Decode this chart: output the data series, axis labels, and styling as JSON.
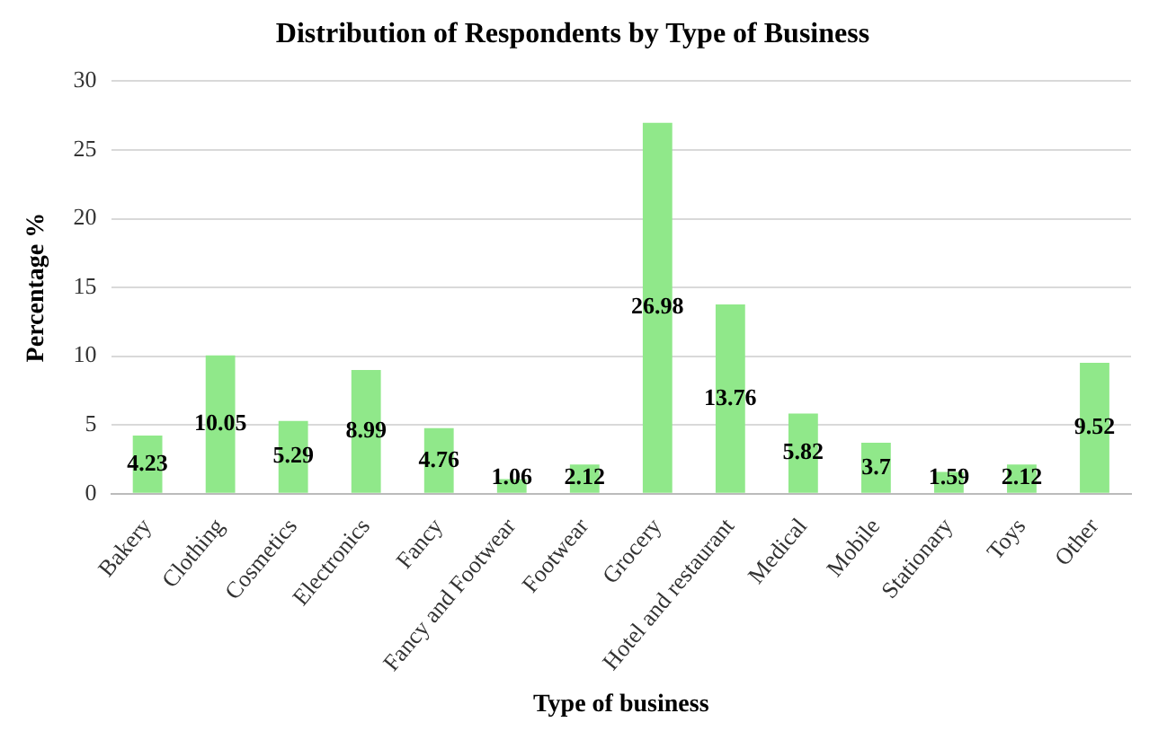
{
  "chart_data": {
    "type": "bar",
    "title": "Distribution of Respondents by Type of Business",
    "xlabel": "Type of business",
    "ylabel": "Percentage %",
    "categories": [
      "Bakery",
      "Clothing",
      "Cosmetics",
      "Electronics",
      "Fancy",
      "Fancy and Footwear",
      "Footwear",
      "Grocery",
      "Hotel and restaurant",
      "Medical",
      "Mobile",
      "Stationary",
      "Toys",
      "Other"
    ],
    "values": [
      4.23,
      10.05,
      5.29,
      8.99,
      4.76,
      1.06,
      2.12,
      26.98,
      13.76,
      5.82,
      3.7,
      1.59,
      2.12,
      9.52
    ],
    "color": "#90e88a",
    "ylim": [
      0,
      30
    ],
    "yticks": [
      0,
      5,
      10,
      15,
      20,
      25,
      30
    ],
    "grid": "y",
    "legend": false,
    "data_labels": true
  }
}
